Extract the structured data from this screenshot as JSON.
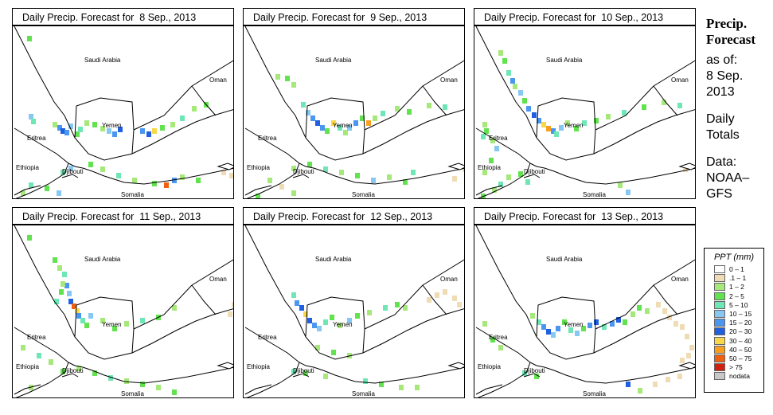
{
  "panels": [
    {
      "title": "Daily Precip. Forecast for  8 Sep., 2013"
    },
    {
      "title": "Daily Precip. Forecast for  9 Sep., 2013"
    },
    {
      "title": "Daily Precip. Forecast for  10 Sep., 2013"
    },
    {
      "title": "Daily Precip. Forecast for  11 Sep., 2013"
    },
    {
      "title": "Daily Precip. Forecast for  12 Sep., 2013"
    },
    {
      "title": "Daily Precip. Forecast for  13 Sep., 2013"
    }
  ],
  "map_labels": {
    "saudi": "Saudi Arabia",
    "oman": "Oman",
    "yemen": "Yemen",
    "eritrea": "Eritrea",
    "ethiopia": "Ethiopia",
    "djibouti": "Djibouti",
    "somalia": "Somalia"
  },
  "side": {
    "title1": "Precip.",
    "title2": "Forecast",
    "asof": "as of:",
    "date1": "8 Sep.",
    "date2": "2013",
    "daily1": "Daily",
    "daily2": "Totals",
    "data1": "Data:",
    "data2": "NOAA–",
    "data3": "GFS"
  },
  "legend": {
    "title": "PPT (mm)",
    "items": [
      {
        "label": "0 – 1",
        "color": "#ffffff"
      },
      {
        "label": ".1 – 1",
        "color": "#f0dcb4"
      },
      {
        "label": "1 – 2",
        "color": "#a6e87a"
      },
      {
        "label": "2 – 5",
        "color": "#62e24e"
      },
      {
        "label": "5 – 10",
        "color": "#6fe6b6"
      },
      {
        "label": "10 – 15",
        "color": "#86c8f2"
      },
      {
        "label": "15 – 20",
        "color": "#4a96f0"
      },
      {
        "label": "20 – 30",
        "color": "#1f5fe0"
      },
      {
        "label": "30 – 40",
        "color": "#f8d84a"
      },
      {
        "label": "40 – 50",
        "color": "#f7a020"
      },
      {
        "label": "50 – 75",
        "color": "#f06010"
      },
      {
        "label": "> 75",
        "color": "#d02010"
      },
      {
        "label": "nodata",
        "color": "#c8c8c8"
      }
    ]
  }
}
